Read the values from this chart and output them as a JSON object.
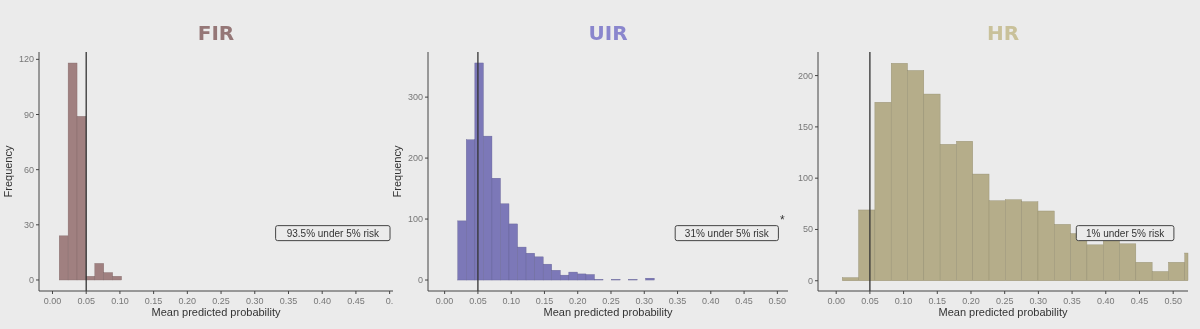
{
  "chart_data": [
    {
      "type": "histogram",
      "title": "FIR",
      "xlabel": "Mean predicted probability",
      "ylabel": "Frequency",
      "color": "#a08080",
      "bins": [
        0.01,
        0.0232,
        0.0364,
        0.0496,
        0.0628,
        0.076,
        0.0892,
        0.1024,
        0.1156,
        0.1288,
        0.142,
        0.1552,
        0.1684,
        0.1816,
        0.1948,
        0.208,
        0.2212,
        0.2344,
        0.2476,
        0.2608,
        0.274,
        0.2872,
        0.3004,
        0.3136,
        0.3268,
        0.34,
        0.3532,
        0.3664,
        0.3796,
        0.3928,
        0.406
      ],
      "values": [
        24,
        118,
        89,
        2,
        9,
        4,
        2,
        0,
        0,
        0,
        0,
        0,
        0,
        0,
        0,
        0,
        0,
        0,
        0,
        0,
        0,
        0,
        0,
        0,
        0,
        0,
        0,
        0,
        0,
        0
      ],
      "xlim": [
        -0.02,
        0.505
      ],
      "ylim": [
        -6,
        124
      ],
      "xticks": [
        {
          "value": 0,
          "label": "0.00"
        },
        {
          "value": 0.05,
          "label": "0.05"
        },
        {
          "value": 0.1,
          "label": "0.10"
        },
        {
          "value": 0.15,
          "label": "0.15"
        },
        {
          "value": 0.2,
          "label": "0.20"
        },
        {
          "value": 0.25,
          "label": "0.25"
        },
        {
          "value": 0.3,
          "label": "0.30"
        },
        {
          "value": 0.35,
          "label": "0.35"
        },
        {
          "value": 0.4,
          "label": "0.40"
        },
        {
          "value": 0.45,
          "label": "0.45"
        },
        {
          "value": 0.5,
          "label": "0."
        }
      ],
      "yticks": [
        0,
        30,
        60,
        90,
        120
      ],
      "ref_lines": [
        {
          "axis": "x",
          "value": 0.05,
          "color": "#333333"
        }
      ],
      "annotations": [
        "93.5% under 5% risk"
      ],
      "grid": false
    },
    {
      "type": "histogram",
      "title": "UIR",
      "xlabel": "Mean predicted probability",
      "ylabel": "Frequency",
      "color": "#7c78b8",
      "bins": [
        0.0197,
        0.0325,
        0.0454,
        0.0582,
        0.0711,
        0.0839,
        0.0967,
        0.1096,
        0.1224,
        0.1353,
        0.1481,
        0.1609,
        0.1738,
        0.1866,
        0.1995,
        0.2123,
        0.2251,
        0.238,
        0.2508,
        0.2637,
        0.2765,
        0.2893,
        0.3022,
        0.315,
        0.3279,
        0.3407,
        0.3535,
        0.3664,
        0.3792,
        0.3921,
        0.4049
      ],
      "values": [
        97,
        230,
        356,
        236,
        167,
        125,
        92,
        54,
        44,
        38,
        26,
        16,
        8,
        13,
        10,
        9,
        1,
        0,
        1,
        0,
        1,
        0,
        3,
        0,
        0,
        0,
        0,
        0,
        0,
        0
      ],
      "xlim": [
        -0.025,
        0.516
      ],
      "ylim": [
        -18,
        374
      ],
      "xticks": [
        {
          "value": 0,
          "label": "0.00"
        },
        {
          "value": 0.05,
          "label": "0.05"
        },
        {
          "value": 0.1,
          "label": "0.10"
        },
        {
          "value": 0.15,
          "label": "0.15"
        },
        {
          "value": 0.2,
          "label": "0.20"
        },
        {
          "value": 0.25,
          "label": "0.25"
        },
        {
          "value": 0.3,
          "label": "0.30"
        },
        {
          "value": 0.35,
          "label": "0.35"
        },
        {
          "value": 0.4,
          "label": "0.40"
        },
        {
          "value": 0.45,
          "label": "0.45"
        },
        {
          "value": 0.5,
          "label": "0.50"
        }
      ],
      "yticks": [
        0,
        100,
        200,
        300
      ],
      "ref_lines": [
        {
          "axis": "x",
          "value": 0.05,
          "color": "#333333"
        }
      ],
      "annotations": [
        "31% under 5% risk",
        "*"
      ],
      "grid": false
    },
    {
      "type": "histogram",
      "title": "HR",
      "xlabel": "Mean predicted probability",
      "color": "#b5ad8a",
      "bins": [
        0.009,
        0.0332,
        0.0574,
        0.0816,
        0.1058,
        0.13,
        0.1542,
        0.1784,
        0.2026,
        0.2268,
        0.251,
        0.2752,
        0.2994,
        0.3236,
        0.3478,
        0.372,
        0.3962,
        0.4204,
        0.4446,
        0.4688,
        0.493,
        0.5172,
        0.522
      ],
      "values": [
        3,
        69,
        174,
        212,
        205,
        182,
        133,
        136,
        104,
        78,
        79,
        77,
        68,
        55,
        46,
        35,
        40,
        36,
        18,
        9,
        18,
        27
      ],
      "xlim": [
        -0.027,
        0.522
      ],
      "ylim": [
        -10,
        223
      ],
      "xticks": [
        {
          "value": 0,
          "label": "0.00"
        },
        {
          "value": 0.05,
          "label": "0.05"
        },
        {
          "value": 0.1,
          "label": "0.10"
        },
        {
          "value": 0.15,
          "label": "0.15"
        },
        {
          "value": 0.2,
          "label": "0.20"
        },
        {
          "value": 0.25,
          "label": "0.25"
        },
        {
          "value": 0.3,
          "label": "0.30"
        },
        {
          "value": 0.35,
          "label": "0.35"
        },
        {
          "value": 0.4,
          "label": "0.40"
        },
        {
          "value": 0.45,
          "label": "0.45"
        },
        {
          "value": 0.5,
          "label": "0.50"
        }
      ],
      "yticks": [
        0,
        50,
        100,
        150,
        200
      ],
      "ref_lines": [
        {
          "axis": "x",
          "value": 0.05,
          "color": "#333333"
        }
      ],
      "annotations": [
        "1% under 5% risk"
      ],
      "grid": false
    }
  ]
}
